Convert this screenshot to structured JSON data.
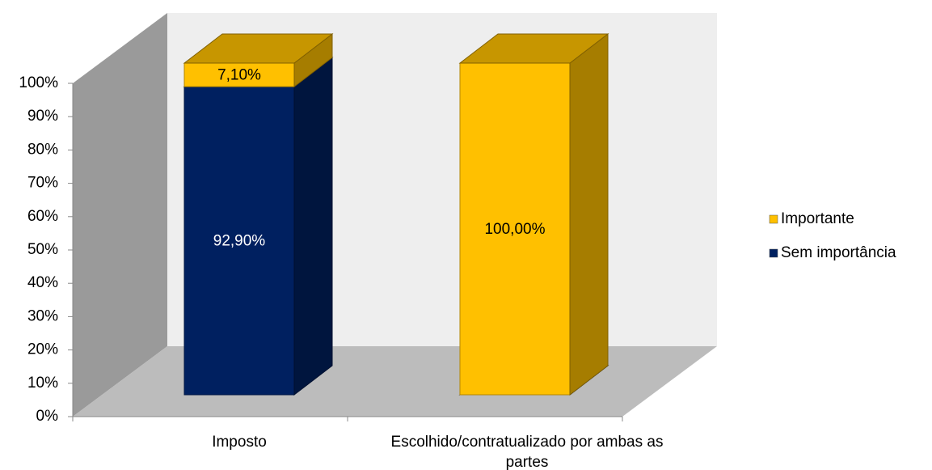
{
  "chart_data": {
    "type": "bar3d_stacked",
    "categories": [
      "Imposto",
      "Escolhido/contratualizado por ambas as partes"
    ],
    "series": [
      {
        "name": "Sem importância",
        "color": "#002060",
        "values": [
          92.9,
          0
        ],
        "value_labels": [
          "92,90%",
          null
        ]
      },
      {
        "name": "Importante",
        "color": "#ffc000",
        "values": [
          7.1,
          100
        ],
        "value_labels": [
          "7,10%",
          "100,00%"
        ]
      }
    ],
    "ylim": [
      0,
      100
    ],
    "yticks": [
      {
        "value": 0,
        "label": "0%"
      },
      {
        "value": 10,
        "label": "10%"
      },
      {
        "value": 20,
        "label": "20%"
      },
      {
        "value": 30,
        "label": "30%"
      },
      {
        "value": 40,
        "label": "40%"
      },
      {
        "value": 50,
        "label": "50%"
      },
      {
        "value": 60,
        "label": "60%"
      },
      {
        "value": 70,
        "label": "70%"
      },
      {
        "value": 80,
        "label": "80%"
      },
      {
        "value": 90,
        "label": "90%"
      },
      {
        "value": 100,
        "label": "100%"
      }
    ],
    "legend": "right"
  }
}
